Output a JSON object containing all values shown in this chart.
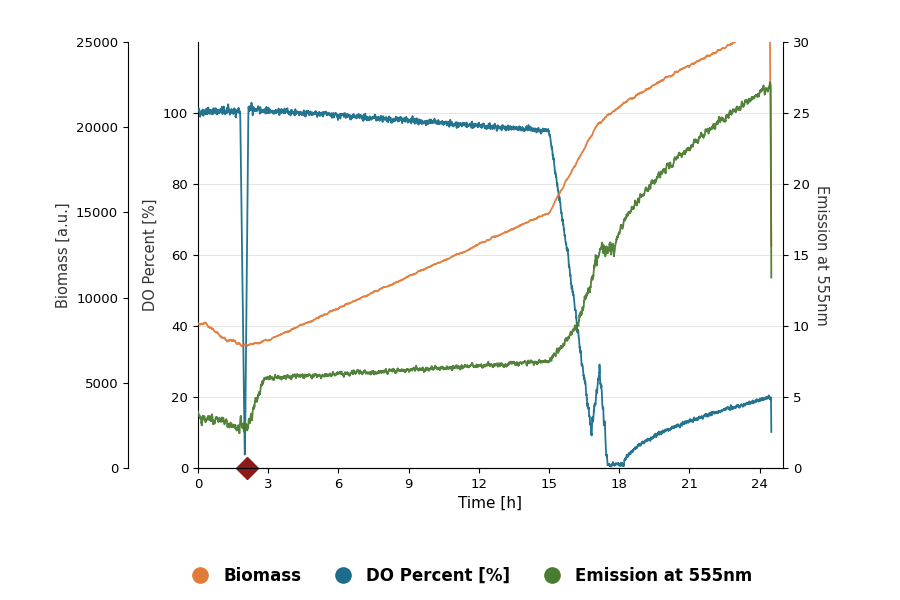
{
  "xlabel": "Time [h]",
  "ylabel_left": "DO Percent [%]",
  "ylabel_left2": "Biomass [a.u.]",
  "ylabel_right": "Emission at 555nm",
  "xlim": [
    0,
    25
  ],
  "xticks": [
    0,
    3,
    6,
    9,
    12,
    15,
    18,
    21,
    24
  ],
  "ylim_do": [
    0,
    120
  ],
  "yticks_do": [
    0,
    20,
    40,
    60,
    80,
    100
  ],
  "ylim_biomass": [
    0,
    25000
  ],
  "yticks_biomass": [
    0,
    5000,
    10000,
    15000,
    20000,
    25000
  ],
  "ylim_right": [
    0,
    30
  ],
  "yticks_right": [
    0,
    5,
    10,
    15,
    20,
    25,
    30
  ],
  "color_do": "#1a6e8a",
  "color_biomass": "#e07b39",
  "color_emission": "#4a7c2f",
  "color_marker": "#8b1a1a",
  "legend_labels": [
    "Biomass",
    "DO Percent [%]",
    "Emission at 555nm"
  ],
  "background_color": "#ffffff"
}
